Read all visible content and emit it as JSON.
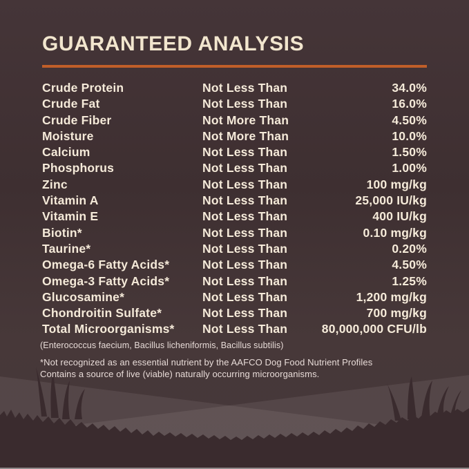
{
  "colors": {
    "background": "#45373a",
    "title_text": "#f2e6ce",
    "rule_orange": "#c05e29",
    "row_text": "#f5ead9",
    "footnote_text": "#e8dcd8",
    "hill_tint": "#584a4c",
    "grass_silhouette": "#3a2b2e"
  },
  "header": {
    "title": "GUARANTEED ANALYSIS"
  },
  "table": {
    "rows": [
      {
        "nutrient": "Crude Protein",
        "comparator": "Not Less Than",
        "value": "34.0%"
      },
      {
        "nutrient": "Crude Fat",
        "comparator": "Not Less Than",
        "value": "16.0%"
      },
      {
        "nutrient": "Crude Fiber",
        "comparator": "Not More Than",
        "value": "4.50%"
      },
      {
        "nutrient": "Moisture",
        "comparator": "Not More Than",
        "value": "10.0%"
      },
      {
        "nutrient": "Calcium",
        "comparator": "Not Less Than",
        "value": "1.50%"
      },
      {
        "nutrient": "Phosphorus",
        "comparator": "Not Less Than",
        "value": "1.00%"
      },
      {
        "nutrient": "Zinc",
        "comparator": "Not Less Than",
        "value": "100 mg/kg"
      },
      {
        "nutrient": "Vitamin A",
        "comparator": "Not Less Than",
        "value": "25,000 IU/kg"
      },
      {
        "nutrient": "Vitamin E",
        "comparator": "Not Less Than",
        "value": "400 IU/kg"
      },
      {
        "nutrient": "Biotin*",
        "comparator": "Not Less Than",
        "value": "0.10 mg/kg"
      },
      {
        "nutrient": "Taurine*",
        "comparator": "Not Less Than",
        "value": "0.20%"
      },
      {
        "nutrient": "Omega-6 Fatty Acids*",
        "comparator": "Not Less Than",
        "value": "4.50%"
      },
      {
        "nutrient": "Omega-3 Fatty Acids*",
        "comparator": "Not Less Than",
        "value": "1.25%"
      },
      {
        "nutrient": "Glucosamine*",
        "comparator": "Not Less Than",
        "value": "1,200 mg/kg"
      },
      {
        "nutrient": "Chondroitin Sulfate*",
        "comparator": "Not Less Than",
        "value": "700 mg/kg"
      },
      {
        "nutrient": "Total Microorganisms*",
        "comparator": "Not Less Than",
        "value": "80,000,000 CFU/lb"
      }
    ]
  },
  "footnotes": {
    "organisms": "(Enterococcus faecium, Bacillus licheniformis, Bacillus subtilis)",
    "aafco": "*Not recognized as an essential nutrient by the AAFCO Dog Food Nutrient Profiles",
    "live": "Contains a source of live (viable) naturally occurring microorganisms."
  }
}
